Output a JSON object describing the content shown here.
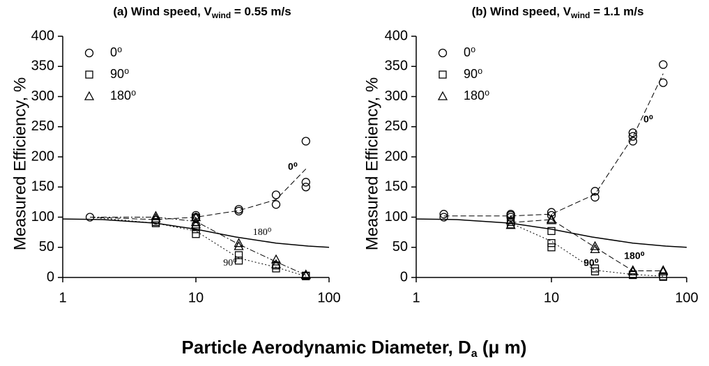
{
  "xlabel": {
    "text": "Particle Aerodynamic Diameter, D",
    "sub": "a",
    "tail": " (μ m)"
  },
  "chart_data": [
    {
      "type": "scatter",
      "title": {
        "text": "(a) Wind speed, V",
        "sub": "wind",
        "tail": " = 0.55 m/s"
      },
      "ylabel": "Measured Efficiency, %",
      "xscale": "log",
      "xlim": [
        1,
        100
      ],
      "xticks": [
        1,
        10,
        100
      ],
      "ylim": [
        0,
        400
      ],
      "yticks": [
        0,
        50,
        100,
        150,
        200,
        250,
        300,
        350,
        400
      ],
      "legend": "upper left",
      "series": [
        {
          "name": "0⁰",
          "marker": "circle",
          "color": "#000000",
          "x": [
            1.6,
            5,
            10,
            10,
            10,
            21,
            21,
            40,
            40,
            67,
            67,
            67
          ],
          "values": [
            100,
            95,
            103,
            100,
            98,
            113,
            110,
            137,
            121,
            226,
            158,
            150
          ]
        },
        {
          "name": "90⁰",
          "marker": "square",
          "color": "#000000",
          "x": [
            5,
            5,
            10,
            10,
            10,
            21,
            21,
            40,
            40,
            67,
            67
          ],
          "values": [
            92,
            90,
            72,
            80,
            85,
            37,
            28,
            15,
            20,
            2,
            3
          ]
        },
        {
          "name": "180⁰",
          "marker": "triangle",
          "color": "#000000",
          "x": [
            5,
            5,
            10,
            10,
            10,
            21,
            21,
            40,
            40,
            67,
            67
          ],
          "values": [
            102,
            98,
            100,
            92,
            88,
            57,
            52,
            30,
            22,
            4,
            5
          ]
        }
      ],
      "fits": [
        {
          "style": "dashed",
          "x": [
            1.6,
            5,
            10,
            21,
            40,
            67
          ],
          "values": [
            100,
            96,
            100,
            111,
            129,
            180
          ]
        },
        {
          "style": "dotted",
          "x": [
            1.6,
            5,
            10,
            21,
            40,
            67
          ],
          "values": [
            100,
            90,
            77,
            32,
            17,
            2
          ]
        },
        {
          "style": "dashdot",
          "x": [
            1.6,
            5,
            10,
            21,
            40,
            67
          ],
          "values": [
            100,
            100,
            93,
            55,
            26,
            4
          ]
        }
      ],
      "curve": {
        "x": [
          1,
          2,
          5,
          10,
          20,
          40,
          70,
          100
        ],
        "values": [
          97,
          96,
          90,
          80,
          67,
          57,
          52,
          50
        ]
      },
      "annotations": [
        "0⁰",
        "180⁰",
        "90⁰"
      ]
    },
    {
      "type": "scatter",
      "title": {
        "text": "(b) Wind speed, V",
        "sub": "wind",
        "tail": " = 1.1 m/s"
      },
      "ylabel": "Measured Efficiency, %",
      "xscale": "log",
      "xlim": [
        1,
        100
      ],
      "xticks": [
        1,
        10,
        100
      ],
      "ylim": [
        0,
        400
      ],
      "yticks": [
        0,
        50,
        100,
        150,
        200,
        250,
        300,
        350,
        400
      ],
      "legend": "upper left",
      "series": [
        {
          "name": "0⁰",
          "marker": "circle",
          "color": "#000000",
          "x": [
            1.6,
            1.6,
            5,
            5,
            5,
            10,
            10,
            21,
            21,
            40,
            40,
            40,
            67,
            67
          ],
          "values": [
            105,
            100,
            105,
            100,
            103,
            108,
            103,
            143,
            133,
            240,
            234,
            226,
            353,
            323
          ]
        },
        {
          "name": "90⁰",
          "marker": "square",
          "color": "#000000",
          "x": [
            5,
            5,
            10,
            10,
            10,
            21,
            21,
            40,
            40,
            67,
            67
          ],
          "values": [
            92,
            88,
            77,
            57,
            50,
            15,
            10,
            5,
            4,
            2,
            1
          ]
        },
        {
          "name": "180⁰",
          "marker": "triangle",
          "color": "#000000",
          "x": [
            5,
            5,
            10,
            10,
            21,
            21,
            40,
            40,
            67,
            67
          ],
          "values": [
            95,
            87,
            97,
            95,
            52,
            47,
            12,
            10,
            12,
            10
          ]
        }
      ],
      "fits": [
        {
          "style": "dashed",
          "x": [
            1.6,
            5,
            10,
            21,
            40,
            67
          ],
          "values": [
            102,
            102,
            105,
            138,
            233,
            338
          ]
        },
        {
          "style": "dotted",
          "x": [
            5,
            10,
            21,
            40,
            67
          ],
          "values": [
            90,
            60,
            12,
            5,
            2
          ]
        },
        {
          "style": "dashed",
          "x": [
            5,
            10,
            21,
            40,
            67
          ],
          "values": [
            91,
            96,
            50,
            11,
            11
          ]
        }
      ],
      "curve": {
        "x": [
          1,
          2,
          5,
          10,
          20,
          40,
          70,
          100
        ],
        "values": [
          97,
          96,
          90,
          80,
          67,
          57,
          52,
          50
        ]
      },
      "annotations": [
        "0⁰",
        "180⁰",
        "90⁰"
      ]
    }
  ]
}
